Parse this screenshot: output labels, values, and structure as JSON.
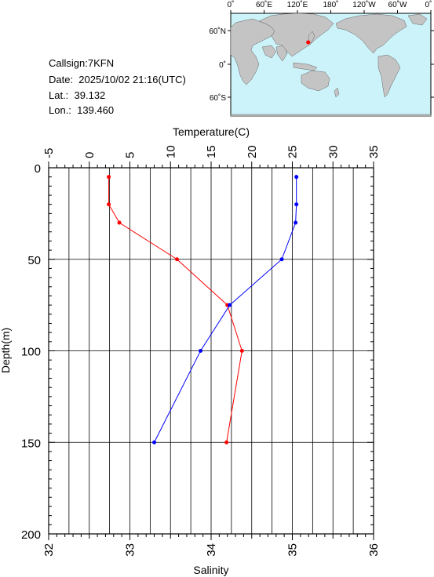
{
  "station": {
    "callsign": "Callsign:7KFN",
    "date": "Date:  2025/10/02 21:16(UTC)",
    "lat": "Lat.:  39.132",
    "lon": "Lon.:  139.460"
  },
  "map": {
    "lon_labels": [
      "0˚",
      "60˚E",
      "120˚E",
      "180˚",
      "120˚W",
      "60˚W",
      "0˚"
    ],
    "lat_labels": [
      "60˚N",
      "0˚",
      "60˚S"
    ],
    "ocean_color": "#ccf3fa",
    "land_color": "#c4c4c4",
    "marker_color": "#ff0000",
    "marker": {
      "lon": 139.46,
      "lat": 39.132
    }
  },
  "chart_data": {
    "type": "line",
    "ylabel": "Depth(m)",
    "ylim": [
      0,
      200
    ],
    "y_ticks": [
      0,
      50,
      100,
      150,
      200
    ],
    "y_inverted": true,
    "grid": true,
    "top_axis": {
      "label": "Temperature(C)",
      "range": [
        -5,
        35
      ],
      "ticks": [
        -5,
        0,
        5,
        10,
        15,
        20,
        25,
        30,
        35
      ]
    },
    "bottom_axis": {
      "label": "Salinity",
      "range": [
        32,
        36
      ],
      "ticks": [
        32,
        33,
        34,
        35,
        36
      ]
    },
    "series": [
      {
        "axis": "temperature",
        "color": "#ff0000",
        "points": [
          [
            2.4,
            5
          ],
          [
            2.4,
            20
          ],
          [
            3.7,
            30
          ],
          [
            10.8,
            50
          ],
          [
            17.0,
            75
          ],
          [
            18.8,
            100
          ],
          [
            16.9,
            150
          ]
        ]
      },
      {
        "axis": "salinity",
        "color": "#0000ff",
        "points": [
          [
            35.05,
            5
          ],
          [
            35.05,
            20
          ],
          [
            35.04,
            30
          ],
          [
            34.87,
            50
          ],
          [
            34.23,
            75
          ],
          [
            33.87,
            100
          ],
          [
            33.3,
            150
          ]
        ]
      }
    ]
  }
}
